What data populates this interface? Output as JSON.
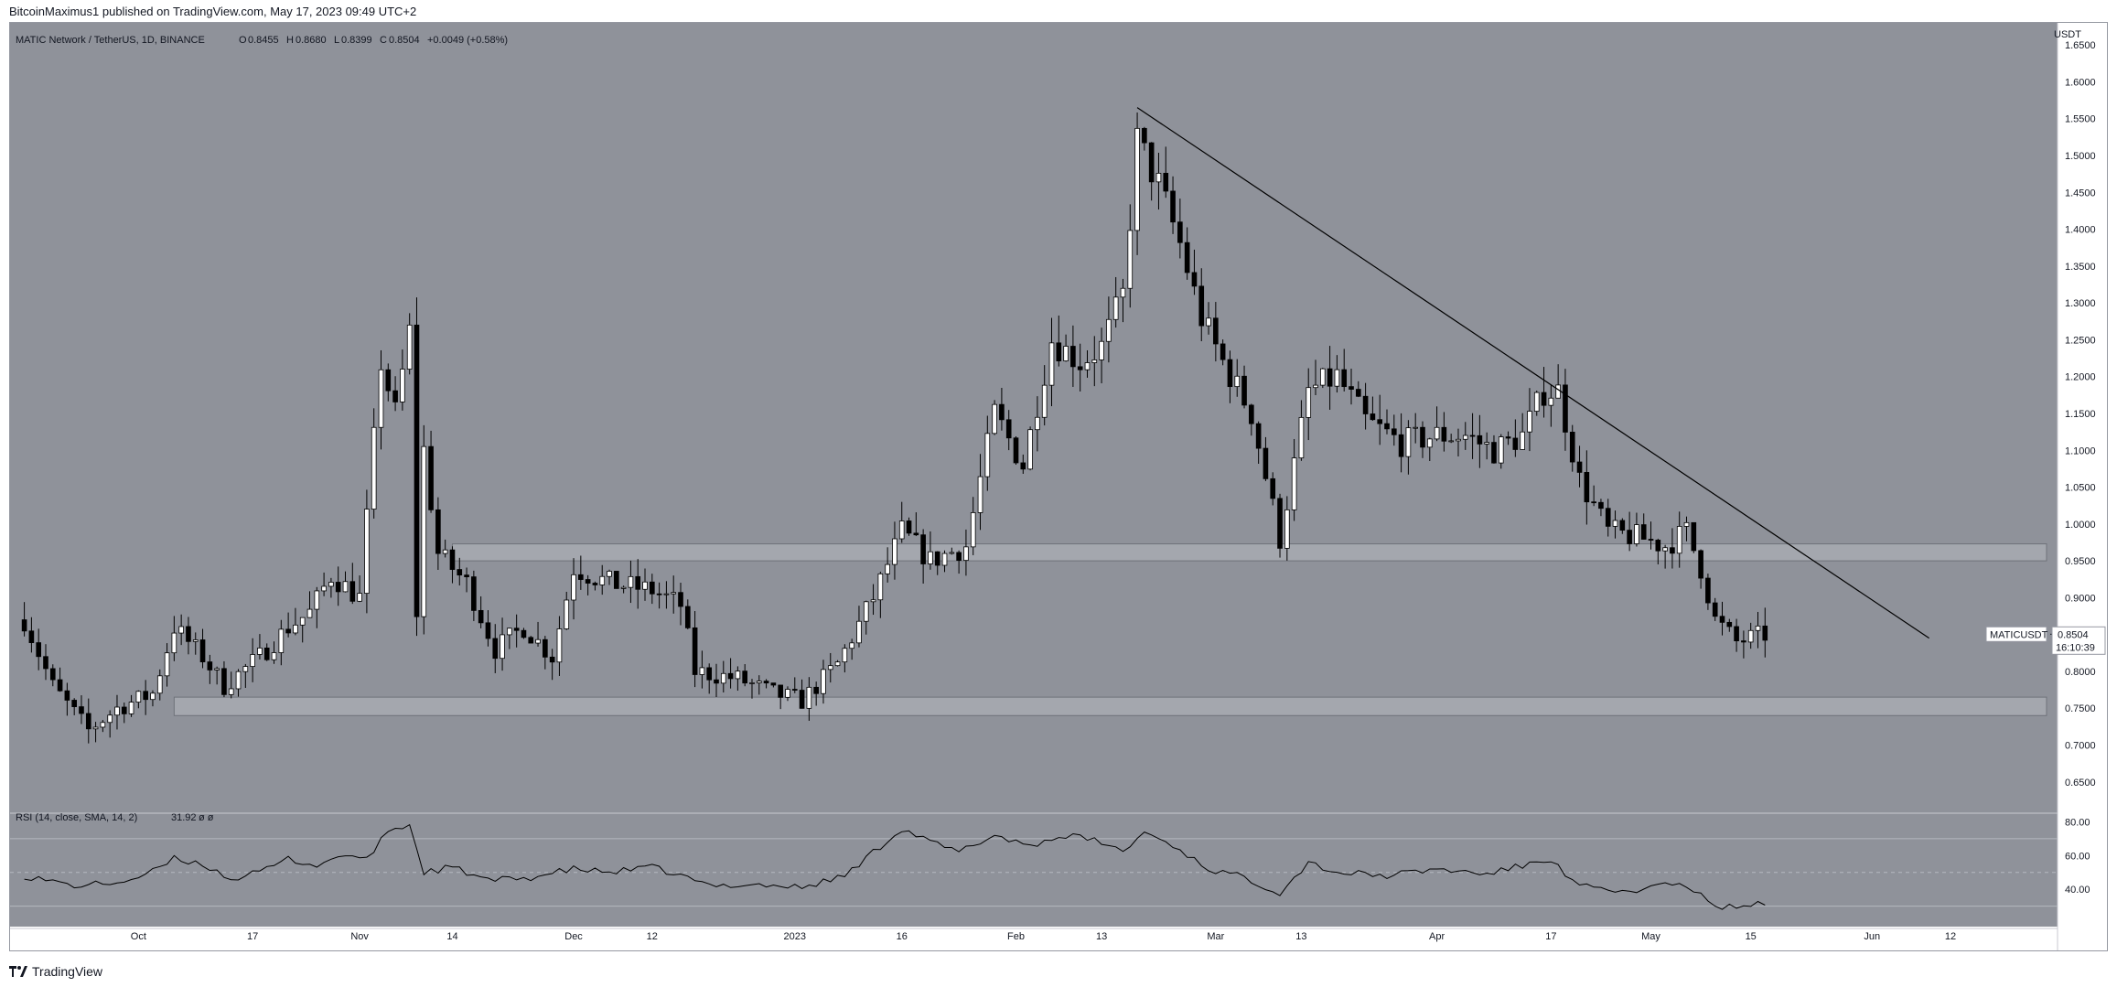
{
  "header": {
    "published_text": "BitcoinMaximus1 published on TradingView.com, May 17, 2023 09:49 UTC+2"
  },
  "footer": {
    "brand_text": "TradingView"
  },
  "colors": {
    "plot_background": "#8f929a",
    "zone_fill": "#a4a7ae",
    "candle_up_body": "#ffffff",
    "candle_down_body": "#000000",
    "wick": "#000000",
    "trendline": "#000000",
    "rsi_line": "#000000",
    "label_background": "#ffffff"
  },
  "chart_data": {
    "type": "candlestick",
    "legend": {
      "symbol": "MATIC Network / TetherUS, 1D, BINANCE",
      "o_label": "O",
      "o_value": "0.8455",
      "h_label": "H",
      "h_value": "0.8680",
      "l_label": "L",
      "l_value": "0.8399",
      "c_label": "C",
      "c_value": "0.8504",
      "change": "+0.0049 (+0.58%)"
    },
    "currency_label": "USDT",
    "ylim": [
      0.61,
      1.68
    ],
    "y_ticks": [
      "0.6500",
      "0.7000",
      "0.7500",
      "0.8000",
      "0.8500",
      "0.9000",
      "0.9500",
      "1.0000",
      "1.0500",
      "1.1000",
      "1.1500",
      "1.2000",
      "1.2500",
      "1.3000",
      "1.3500",
      "1.4000",
      "1.4500",
      "1.5000",
      "1.5500",
      "1.6000",
      "1.6500"
    ],
    "x_ticks": [
      {
        "label": "Oct",
        "date": "2022-10-01"
      },
      {
        "label": "17",
        "date": "2022-10-17"
      },
      {
        "label": "Nov",
        "date": "2022-11-01"
      },
      {
        "label": "14",
        "date": "2022-11-14"
      },
      {
        "label": "Dec",
        "date": "2022-12-01"
      },
      {
        "label": "12",
        "date": "2022-12-12"
      },
      {
        "label": "2023",
        "date": "2023-01-01"
      },
      {
        "label": "16",
        "date": "2023-01-16"
      },
      {
        "label": "Feb",
        "date": "2023-02-01"
      },
      {
        "label": "13",
        "date": "2023-02-13"
      },
      {
        "label": "Mar",
        "date": "2023-03-01"
      },
      {
        "label": "13",
        "date": "2023-03-13"
      },
      {
        "label": "Apr",
        "date": "2023-04-01"
      },
      {
        "label": "17",
        "date": "2023-04-17"
      },
      {
        "label": "May",
        "date": "2023-05-01"
      },
      {
        "label": "15",
        "date": "2023-05-15"
      },
      {
        "label": "Jun",
        "date": "2023-06-01"
      },
      {
        "label": "12",
        "date": "2023-06-12"
      }
    ],
    "price_path": [
      [
        "2022-09-15",
        0.87
      ],
      [
        "2022-09-19",
        0.78
      ],
      [
        "2022-09-24",
        0.72
      ],
      [
        "2022-09-28",
        0.75
      ],
      [
        "2022-10-03",
        0.77
      ],
      [
        "2022-10-06",
        0.86
      ],
      [
        "2022-10-10",
        0.82
      ],
      [
        "2022-10-13",
        0.78
      ],
      [
        "2022-10-18",
        0.82
      ],
      [
        "2022-10-22",
        0.86
      ],
      [
        "2022-10-25",
        0.88
      ],
      [
        "2022-10-28",
        0.93
      ],
      [
        "2022-11-01",
        0.9
      ],
      [
        "2022-11-04",
        1.22
      ],
      [
        "2022-11-06",
        1.15
      ],
      [
        "2022-11-08",
        1.26
      ],
      [
        "2022-11-09",
        0.88
      ],
      [
        "2022-11-10",
        1.1
      ],
      [
        "2022-11-12",
        0.96
      ],
      [
        "2022-11-16",
        0.92
      ],
      [
        "2022-11-20",
        0.83
      ],
      [
        "2022-11-24",
        0.86
      ],
      [
        "2022-11-28",
        0.82
      ],
      [
        "2022-12-01",
        0.94
      ],
      [
        "2022-12-06",
        0.92
      ],
      [
        "2022-12-12",
        0.91
      ],
      [
        "2022-12-16",
        0.89
      ],
      [
        "2022-12-18",
        0.8
      ],
      [
        "2022-12-24",
        0.79
      ],
      [
        "2022-12-29",
        0.77
      ],
      [
        "2023-01-02",
        0.76
      ],
      [
        "2023-01-07",
        0.81
      ],
      [
        "2023-01-12",
        0.9
      ],
      [
        "2023-01-16",
        0.99
      ],
      [
        "2023-01-20",
        0.95
      ],
      [
        "2023-01-25",
        0.97
      ],
      [
        "2023-01-29",
        1.15
      ],
      [
        "2023-02-02",
        1.08
      ],
      [
        "2023-02-06",
        1.25
      ],
      [
        "2023-02-10",
        1.22
      ],
      [
        "2023-02-13",
        1.24
      ],
      [
        "2023-02-16",
        1.31
      ],
      [
        "2023-02-18",
        1.52
      ],
      [
        "2023-02-21",
        1.46
      ],
      [
        "2023-02-24",
        1.38
      ],
      [
        "2023-02-27",
        1.28
      ],
      [
        "2023-03-02",
        1.22
      ],
      [
        "2023-03-06",
        1.15
      ],
      [
        "2023-03-10",
        0.98
      ],
      [
        "2023-03-14",
        1.18
      ],
      [
        "2023-03-18",
        1.2
      ],
      [
        "2023-03-22",
        1.14
      ],
      [
        "2023-03-27",
        1.11
      ],
      [
        "2023-04-01",
        1.12
      ],
      [
        "2023-04-05",
        1.12
      ],
      [
        "2023-04-09",
        1.1
      ],
      [
        "2023-04-13",
        1.12
      ],
      [
        "2023-04-16",
        1.18
      ],
      [
        "2023-04-18",
        1.18
      ],
      [
        "2023-04-21",
        1.06
      ],
      [
        "2023-04-25",
        0.99
      ],
      [
        "2023-04-30",
        0.98
      ],
      [
        "2023-05-03",
        0.97
      ],
      [
        "2023-05-06",
        0.99
      ],
      [
        "2023-05-08",
        0.94
      ],
      [
        "2023-05-10",
        0.87
      ],
      [
        "2023-05-13",
        0.84
      ],
      [
        "2023-05-17",
        0.85
      ]
    ],
    "support_zones": [
      {
        "from": 0.74,
        "to": 0.765
      },
      {
        "from": 0.95,
        "to": 0.973
      }
    ],
    "trendline": [
      {
        "date": "2023-02-18",
        "price": 1.565
      },
      {
        "date": "2023-06-09",
        "price": 0.845
      }
    ],
    "current_price": {
      "symbol_label": "MATICUSDT",
      "value": "0.8504",
      "countdown": "16:10:39",
      "price": 0.8504
    },
    "rsi": {
      "label": "RSI (14, close, SMA, 14, 2)",
      "value": "31.92",
      "extra": "ø ø",
      "ylim": [
        20,
        84
      ],
      "y_ticks": [
        "40.00",
        "60.00",
        "80.00"
      ],
      "levels": [
        30,
        50,
        70
      ],
      "path": [
        [
          "2022-09-15",
          48
        ],
        [
          "2022-09-22",
          42
        ],
        [
          "2022-09-28",
          44
        ],
        [
          "2022-10-02",
          48
        ],
        [
          "2022-10-06",
          58
        ],
        [
          "2022-10-10",
          55
        ],
        [
          "2022-10-14",
          46
        ],
        [
          "2022-10-18",
          50
        ],
        [
          "2022-10-22",
          58
        ],
        [
          "2022-10-26",
          54
        ],
        [
          "2022-10-30",
          61
        ],
        [
          "2022-11-02",
          57
        ],
        [
          "2022-11-05",
          75
        ],
        [
          "2022-11-08",
          78
        ],
        [
          "2022-11-10",
          50
        ],
        [
          "2022-11-14",
          53
        ],
        [
          "2022-11-19",
          45
        ],
        [
          "2022-11-25",
          47
        ],
        [
          "2022-12-01",
          52
        ],
        [
          "2022-12-06",
          50
        ],
        [
          "2022-12-12",
          53
        ],
        [
          "2022-12-16",
          48
        ],
        [
          "2022-12-20",
          42
        ],
        [
          "2022-12-26",
          43
        ],
        [
          "2023-01-02",
          41
        ],
        [
          "2023-01-08",
          48
        ],
        [
          "2023-01-12",
          62
        ],
        [
          "2023-01-16",
          76
        ],
        [
          "2023-01-20",
          68
        ],
        [
          "2023-01-24",
          62
        ],
        [
          "2023-01-29",
          72
        ],
        [
          "2023-02-03",
          66
        ],
        [
          "2023-02-08",
          72
        ],
        [
          "2023-02-13",
          68
        ],
        [
          "2023-02-16",
          62
        ],
        [
          "2023-02-19",
          74
        ],
        [
          "2023-02-23",
          66
        ],
        [
          "2023-02-28",
          52
        ],
        [
          "2023-03-05",
          47
        ],
        [
          "2023-03-10",
          38
        ],
        [
          "2023-03-14",
          56
        ],
        [
          "2023-03-18",
          50
        ],
        [
          "2023-03-25",
          48
        ],
        [
          "2023-04-01",
          52
        ],
        [
          "2023-04-08",
          49
        ],
        [
          "2023-04-13",
          54
        ],
        [
          "2023-04-17",
          58
        ],
        [
          "2023-04-20",
          44
        ],
        [
          "2023-04-25",
          38
        ],
        [
          "2023-04-30",
          40
        ],
        [
          "2023-05-04",
          44
        ],
        [
          "2023-05-08",
          36
        ],
        [
          "2023-05-11",
          29
        ],
        [
          "2023-05-14",
          30
        ],
        [
          "2023-05-17",
          32
        ]
      ]
    }
  }
}
